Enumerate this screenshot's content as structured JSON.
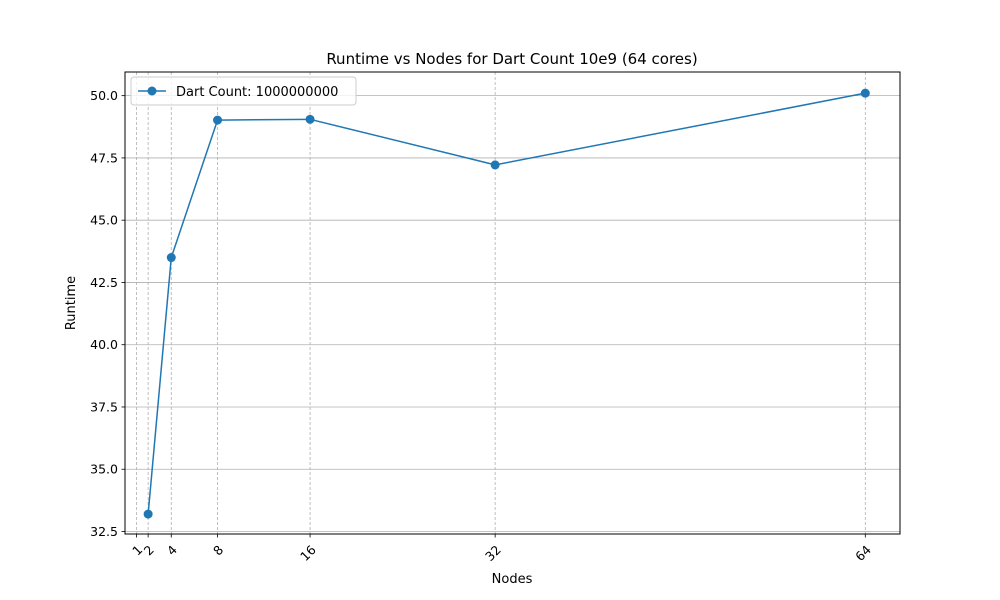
{
  "chart_data": {
    "type": "line",
    "title": "Runtime vs Nodes for Dart Count 10e9 (64 cores)",
    "xlabel": "Nodes",
    "ylabel": "Runtime",
    "x": [
      2,
      4,
      8,
      16,
      32,
      64
    ],
    "x_ticks": [
      1,
      2,
      4,
      8,
      16,
      32,
      64
    ],
    "x_tick_labels": [
      "1",
      "2",
      "4",
      "8",
      "16",
      "32",
      "64"
    ],
    "xlim": [
      0,
      67
    ],
    "ylim": [
      32.4,
      50.95
    ],
    "y_ticks": [
      32.5,
      35.0,
      37.5,
      40.0,
      42.5,
      45.0,
      47.5,
      50.0
    ],
    "y_tick_labels": [
      "32.5",
      "35.0",
      "37.5",
      "40.0",
      "42.5",
      "45.0",
      "47.5",
      "50.0"
    ],
    "series": [
      {
        "name": "Dart Count: 1000000000",
        "values": [
          33.2,
          43.5,
          49.02,
          49.05,
          47.22,
          50.1
        ],
        "color": "#1f77b4",
        "marker": "circle"
      }
    ],
    "legend": {
      "position": "top-left"
    },
    "grid": {
      "horizontal": "solid",
      "vertical": "dashed"
    }
  }
}
